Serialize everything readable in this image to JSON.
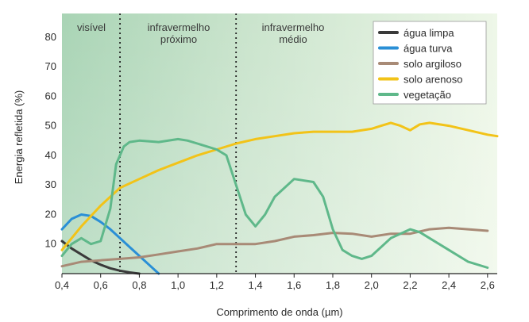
{
  "chart_data": {
    "type": "line",
    "title": "",
    "xlabel": "Comprimento de onda (µm)",
    "ylabel": "Energia refletida (%)",
    "xlim": [
      0.4,
      2.65
    ],
    "ylim": [
      0,
      88
    ],
    "xticks": [
      0.4,
      0.6,
      0.8,
      1.0,
      1.2,
      1.4,
      1.6,
      1.8,
      2.0,
      2.2,
      2.4,
      2.6
    ],
    "xtick_labels": [
      "0,4",
      "0,6",
      "0,8",
      "1,0",
      "1,2",
      "1,4",
      "1,6",
      "1,8",
      "2,0",
      "2,2",
      "2,4",
      "2,6"
    ],
    "yticks": [
      10,
      20,
      30,
      40,
      50,
      60,
      70,
      80
    ],
    "ytick_labels": [
      "10",
      "20",
      "30",
      "40",
      "50",
      "60",
      "70",
      "80"
    ],
    "grid": false,
    "legend_position": "top-right",
    "regions": [
      {
        "label": [
          "visível"
        ],
        "from": 0.4,
        "to": 0.7
      },
      {
        "label": [
          "infravermelho",
          "próximo"
        ],
        "from": 0.7,
        "to": 1.3
      },
      {
        "label": [
          "infravermelho",
          "médio"
        ],
        "from": 1.3,
        "to": 2.65
      }
    ],
    "boundaries": [
      0.7,
      1.3
    ],
    "series": [
      {
        "name": "água limpa",
        "color": "#3a3a3a",
        "x": [
          0.4,
          0.45,
          0.5,
          0.55,
          0.6,
          0.65,
          0.7,
          0.75,
          0.8
        ],
        "y": [
          11,
          8.5,
          6.5,
          4.5,
          3,
          1.8,
          1,
          0.4,
          0
        ]
      },
      {
        "name": "água turva",
        "color": "#2a8fd6",
        "x": [
          0.4,
          0.45,
          0.5,
          0.55,
          0.6,
          0.65,
          0.7,
          0.75,
          0.8,
          0.85,
          0.9
        ],
        "y": [
          15,
          18.5,
          20,
          19.5,
          17.5,
          15,
          12,
          9,
          6,
          3,
          0
        ]
      },
      {
        "name": "solo argiloso",
        "color": "#a88a76",
        "x": [
          0.4,
          0.5,
          0.6,
          0.7,
          0.8,
          0.9,
          1.0,
          1.1,
          1.2,
          1.3,
          1.4,
          1.5,
          1.6,
          1.7,
          1.8,
          1.9,
          2.0,
          2.1,
          2.2,
          2.3,
          2.4,
          2.5,
          2.6
        ],
        "y": [
          2.5,
          4,
          4.5,
          5,
          5.5,
          6.5,
          7.5,
          8.5,
          10,
          10,
          10,
          11,
          12.5,
          13,
          13.8,
          13.5,
          12.5,
          13.5,
          13.5,
          15,
          15.5,
          15,
          14.5
        ]
      },
      {
        "name": "solo arenoso",
        "color": "#f2c318",
        "x": [
          0.4,
          0.5,
          0.6,
          0.7,
          0.8,
          0.9,
          1.0,
          1.1,
          1.2,
          1.3,
          1.4,
          1.5,
          1.6,
          1.7,
          1.8,
          1.9,
          2.0,
          2.05,
          2.1,
          2.15,
          2.2,
          2.25,
          2.3,
          2.4,
          2.5,
          2.6,
          2.65
        ],
        "y": [
          8,
          16,
          23,
          29,
          32,
          35,
          37.5,
          40,
          42,
          44,
          45.5,
          46.5,
          47.5,
          48,
          48,
          48,
          49,
          50,
          51,
          50,
          48.5,
          50.5,
          51,
          50,
          48.5,
          47,
          46.5
        ]
      },
      {
        "name": "vegetação",
        "color": "#5fb88a",
        "x": [
          0.4,
          0.45,
          0.5,
          0.55,
          0.6,
          0.65,
          0.68,
          0.72,
          0.75,
          0.8,
          0.9,
          1.0,
          1.05,
          1.1,
          1.2,
          1.25,
          1.3,
          1.35,
          1.4,
          1.45,
          1.5,
          1.6,
          1.7,
          1.75,
          1.8,
          1.85,
          1.9,
          1.95,
          2.0,
          2.1,
          2.2,
          2.25,
          2.3,
          2.4,
          2.5,
          2.6
        ],
        "y": [
          6,
          10,
          12,
          10,
          11,
          22,
          37,
          43,
          44.5,
          45,
          44.5,
          45.5,
          45,
          44,
          42,
          40,
          30,
          20,
          16,
          20,
          26,
          32,
          31,
          26,
          15,
          8,
          6,
          5,
          6,
          12,
          15,
          14,
          12,
          8,
          4,
          2
        ]
      }
    ]
  }
}
